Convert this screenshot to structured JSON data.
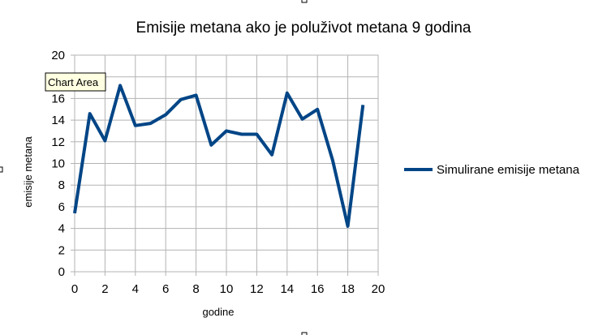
{
  "tooltip": {
    "text": "Chart Area"
  },
  "chart_data": {
    "type": "line",
    "title": "Emisije metana ako je poluživot metana 9 godina",
    "xlabel": "godine",
    "ylabel": "emisije metana",
    "xlim": [
      0,
      20
    ],
    "ylim": [
      0,
      20
    ],
    "x_ticks": [
      "0",
      "2",
      "4",
      "6",
      "8",
      "10",
      "12",
      "14",
      "16",
      "18",
      "20"
    ],
    "y_ticks": [
      "0",
      "2",
      "4",
      "6",
      "8",
      "10",
      "12",
      "14",
      "16",
      "18",
      "20"
    ],
    "grid": true,
    "legend_position": "right",
    "series": [
      {
        "name": "Simulirane emisije metana",
        "color": "#004586",
        "x": [
          0,
          1,
          2,
          3,
          4,
          5,
          6,
          7,
          8,
          9,
          10,
          11,
          12,
          13,
          14,
          15,
          16,
          17,
          18,
          19
        ],
        "y": [
          5.4,
          14.6,
          12.1,
          17.2,
          13.5,
          13.7,
          14.5,
          15.9,
          16.3,
          11.7,
          13.0,
          12.7,
          12.7,
          10.8,
          16.5,
          14.1,
          15.0,
          10.3,
          4.2,
          15.4
        ]
      }
    ]
  }
}
